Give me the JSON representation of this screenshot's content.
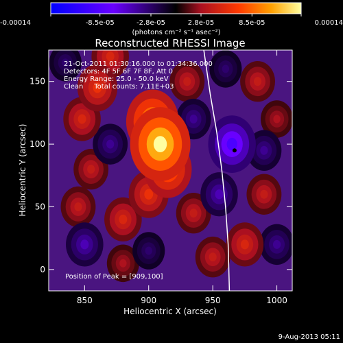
{
  "chart_data": {
    "type": "heatmap",
    "title": "Reconstructed RHESSI Image",
    "xlabel": "Heliocentric X (arcsec)",
    "ylabel": "Heliocentric Y (arcsec)",
    "xlim": [
      822,
      1012
    ],
    "ylim": [
      -17,
      175
    ],
    "x_ticks": [
      850,
      900,
      950,
      1000
    ],
    "y_ticks": [
      0,
      50,
      100,
      150
    ],
    "colorbar": {
      "min": -0.00014,
      "max": 0.00014,
      "tick_values": [
        -0.00014,
        -8.5e-05,
        -2.8e-05,
        2.8e-05,
        8.5e-05,
        0.00014
      ],
      "tick_labels": [
        "-0.00014",
        "-8.5e-05",
        "-2.8e-05",
        "2.8e-05",
        "8.5e-05",
        "0.00014"
      ],
      "units": "(photons cm⁻² s⁻¹ asec⁻²)"
    },
    "annotations": {
      "time_range": "21-Oct-2011 01:30:16.000 to 01:34:36.000",
      "detectors": "Detectors: 4F 5F 6F 7F 8F, Att 0",
      "energy": "Energy Range: 25.0 - 50.0 keV",
      "method_counts": "Clean     Total counts: 7.11E+03",
      "peak": "Position of Peak = [909,100]"
    },
    "peak_position": [
      909,
      100
    ],
    "total_counts": 7110,
    "energy_range_kev": [
      25.0,
      50.0
    ],
    "emission_sources": [
      {
        "x": 909,
        "y": 100,
        "value": 0.00014
      },
      {
        "x": 903,
        "y": 118,
        "value": 0.00011
      },
      {
        "x": 915,
        "y": 80,
        "value": 9e-05
      },
      {
        "x": 900,
        "y": 60,
        "value": 6e-05
      },
      {
        "x": 880,
        "y": 40,
        "value": 5e-05
      },
      {
        "x": 860,
        "y": 145,
        "value": 6e-05
      },
      {
        "x": 848,
        "y": 120,
        "value": 5e-05
      },
      {
        "x": 870,
        "y": 170,
        "value": 5e-05
      },
      {
        "x": 855,
        "y": 80,
        "value": 4e-05
      },
      {
        "x": 845,
        "y": 50,
        "value": 4e-05
      },
      {
        "x": 930,
        "y": 150,
        "value": 4e-05
      },
      {
        "x": 985,
        "y": 150,
        "value": 4e-05
      },
      {
        "x": 990,
        "y": 60,
        "value": 4e-05
      },
      {
        "x": 975,
        "y": 20,
        "value": 5e-05
      },
      {
        "x": 950,
        "y": 10,
        "value": 4e-05
      },
      {
        "x": 935,
        "y": 45,
        "value": 4e-05
      },
      {
        "x": 1000,
        "y": 120,
        "value": 3e-05
      },
      {
        "x": 880,
        "y": 5,
        "value": 3e-05
      },
      {
        "x": 965,
        "y": 100,
        "value": -9e-05
      },
      {
        "x": 955,
        "y": 60,
        "value": -5e-05
      },
      {
        "x": 870,
        "y": 100,
        "value": -4e-05
      },
      {
        "x": 935,
        "y": 120,
        "value": -4e-05
      },
      {
        "x": 990,
        "y": 95,
        "value": -4e-05
      },
      {
        "x": 850,
        "y": 20,
        "value": -5e-05
      },
      {
        "x": 900,
        "y": 15,
        "value": -3e-05
      },
      {
        "x": 1000,
        "y": 20,
        "value": -4e-05
      },
      {
        "x": 960,
        "y": 160,
        "value": -3e-05
      },
      {
        "x": 835,
        "y": 165,
        "value": -3e-05
      }
    ],
    "limb_curve": [
      [
        943,
        175
      ],
      [
        948,
        140
      ],
      [
        953,
        110
      ],
      [
        957,
        80
      ],
      [
        960,
        50
      ],
      [
        962,
        20
      ],
      [
        963,
        -17
      ]
    ],
    "marker": {
      "x": 967,
      "y": 95
    }
  },
  "footer": {
    "date": "9-Aug-2013 05:11"
  }
}
